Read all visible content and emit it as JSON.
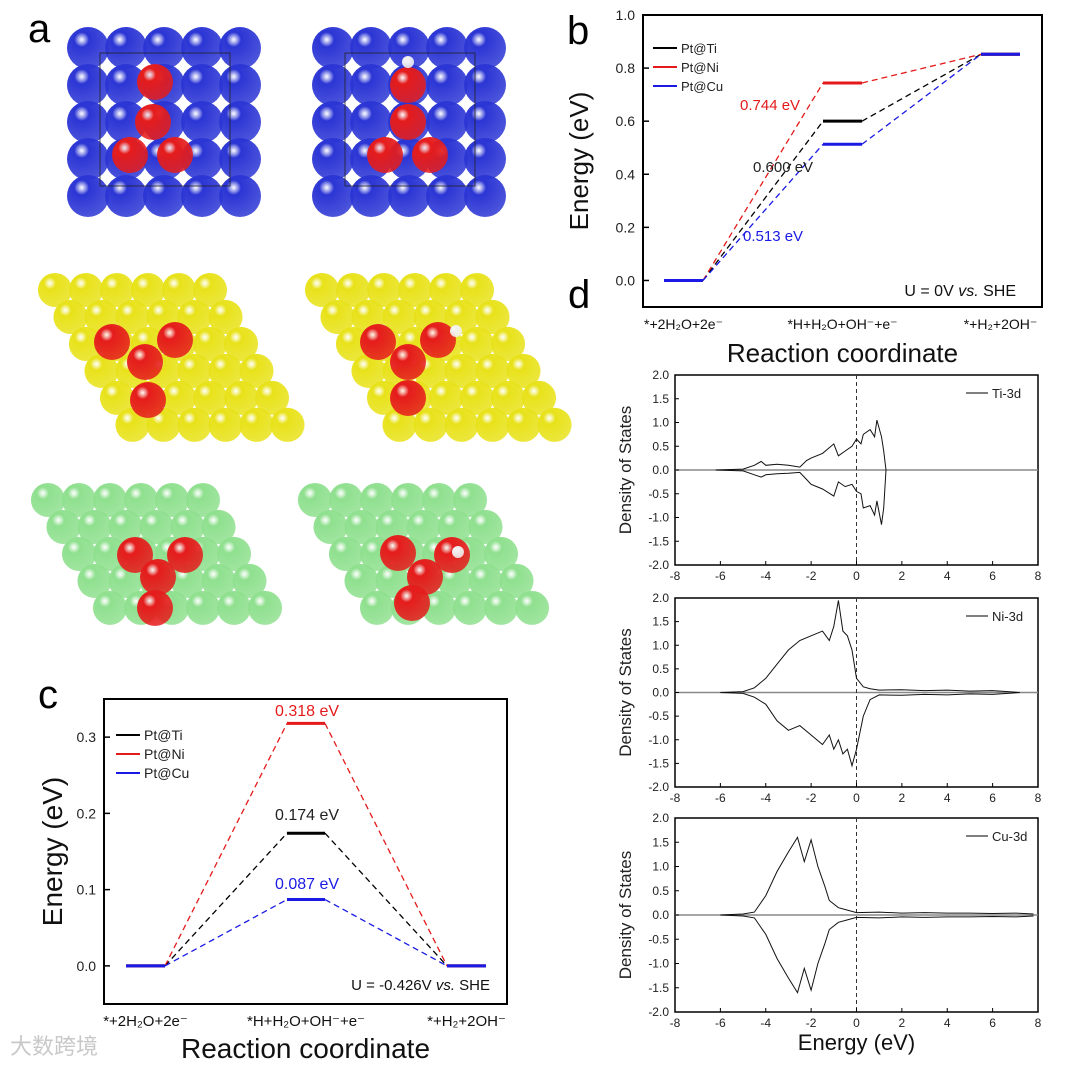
{
  "panel_letters": {
    "a": "a",
    "b": "b",
    "c": "c",
    "d": "d"
  },
  "watermark": "大数跨境",
  "structures": {
    "colors": {
      "substrate_ti": "#2b35d4",
      "substrate_ni": "#e8e21a",
      "substrate_cu": "#8fe08f",
      "pt": "#e51c1c",
      "h": "#f2f2f2"
    }
  },
  "chart_data": [
    {
      "id": "b",
      "type": "line",
      "title": "",
      "xlabel": "Reaction coordinate",
      "ylabel": "Energy (eV)",
      "ylim": [
        -0.1,
        1.0
      ],
      "yticks": [
        "0.0",
        "0.2",
        "0.4",
        "0.6",
        "0.8",
        "1.0"
      ],
      "categories": [
        "*+2H₂O+2e⁻",
        "*H+H₂O+OH⁻+e⁻",
        "*+H₂+2OH⁻"
      ],
      "series": [
        {
          "name": "Pt@Ti",
          "color": "#000000",
          "values": [
            0,
            0.6,
            0.852
          ]
        },
        {
          "name": "Pt@Ni",
          "color": "#e41a1a",
          "values": [
            0,
            0.744,
            0.852
          ]
        },
        {
          "name": "Pt@Cu",
          "color": "#1a1ae4",
          "values": [
            0,
            0.513,
            0.852
          ]
        }
      ],
      "annotations": [
        "0.744 eV",
        "0.600 eV",
        "0.513 eV"
      ],
      "condition": "U = 0V vs. SHE",
      "legend": "top-left"
    },
    {
      "id": "c",
      "type": "line",
      "title": "",
      "xlabel": "Reaction coordinate",
      "ylabel": "Energy (eV)",
      "ylim": [
        -0.05,
        0.35
      ],
      "yticks": [
        "0.0",
        "0.1",
        "0.2",
        "0.3"
      ],
      "categories": [
        "*+2H₂O+2e⁻",
        "*H+H₂O+OH⁻+e⁻",
        "*+H₂+2OH⁻"
      ],
      "series": [
        {
          "name": "Pt@Ti",
          "color": "#000000",
          "values": [
            0,
            0.174,
            0
          ]
        },
        {
          "name": "Pt@Ni",
          "color": "#e41a1a",
          "values": [
            0,
            0.318,
            0
          ]
        },
        {
          "name": "Pt@Cu",
          "color": "#1a1ae4",
          "values": [
            0,
            0.087,
            0
          ]
        }
      ],
      "annotations": [
        "0.318 eV",
        "0.174 eV",
        "0.087 eV"
      ],
      "condition": "U = -0.426V vs. SHE",
      "legend": "top-left"
    },
    {
      "id": "d",
      "type": "line",
      "xlabel": "Energy (eV)",
      "ylabel": "Density of States",
      "xlim": [
        -8,
        8
      ],
      "ylim": [
        -2.0,
        2.0
      ],
      "xticks": [
        "-8",
        "-6",
        "-4",
        "-2",
        "0",
        "2",
        "4",
        "6",
        "8"
      ],
      "yticks": [
        "-2.0",
        "-1.5",
        "-1.0",
        "-0.5",
        "0.0",
        "0.5",
        "1.0",
        "1.5",
        "2.0"
      ],
      "subplots": [
        {
          "name": "Ti-3d",
          "x_up": [
            -6.2,
            -5,
            -4.5,
            -4.2,
            -4,
            -3.5,
            -3,
            -2.5,
            -2.2,
            -2,
            -1.5,
            -1,
            -0.8,
            -0.5,
            -0.2,
            0,
            0.2,
            0.3,
            0.6,
            0.8,
            0.9,
            1.1,
            1.2,
            1.3
          ],
          "up": [
            0,
            0.02,
            0.1,
            0.18,
            0.1,
            0.12,
            0.1,
            0.06,
            0.2,
            0.25,
            0.35,
            0.55,
            0.3,
            0.4,
            0.5,
            0.65,
            0.55,
            0.75,
            0.85,
            0.7,
            1.05,
            0.7,
            0.4,
            0
          ],
          "down": [
            0,
            -0.02,
            -0.1,
            -0.15,
            -0.1,
            -0.08,
            -0.07,
            -0.05,
            -0.2,
            -0.3,
            -0.4,
            -0.55,
            -0.25,
            -0.35,
            -0.3,
            -0.45,
            -0.5,
            -0.8,
            -0.75,
            -0.95,
            -0.65,
            -1.15,
            -0.8,
            0
          ]
        },
        {
          "name": "Ni-3d",
          "x_up": [
            -6,
            -5,
            -4.5,
            -4,
            -3.5,
            -3,
            -2.5,
            -2,
            -1.5,
            -1.2,
            -1,
            -0.8,
            -0.6,
            -0.4,
            -0.2,
            0,
            0.3,
            0.6,
            1,
            2,
            3,
            4,
            5,
            6,
            7.2
          ],
          "up": [
            0,
            0.02,
            0.1,
            0.3,
            0.6,
            0.9,
            1.1,
            1.2,
            1.3,
            1.1,
            1.4,
            1.95,
            1.3,
            1.2,
            0.9,
            0.3,
            0.12,
            0.08,
            0.05,
            0.06,
            0.04,
            0.05,
            0.03,
            0.04,
            0
          ],
          "down": [
            0,
            -0.02,
            -0.1,
            -0.25,
            -0.6,
            -0.8,
            -0.7,
            -0.9,
            -1.1,
            -0.9,
            -1.2,
            -1.0,
            -1.3,
            -1.2,
            -1.55,
            -1.2,
            -0.5,
            -0.15,
            -0.05,
            -0.06,
            -0.04,
            -0.05,
            -0.03,
            -0.04,
            0
          ]
        },
        {
          "name": "Cu-3d",
          "x_up": [
            -6,
            -5,
            -4.5,
            -4,
            -3.5,
            -3,
            -2.6,
            -2.3,
            -2,
            -1.7,
            -1.4,
            -1.2,
            -0.8,
            -0.4,
            0,
            1,
            2,
            3,
            4,
            5,
            6,
            7,
            7.8
          ],
          "up": [
            0,
            0.02,
            0.06,
            0.4,
            0.9,
            1.3,
            1.6,
            1.1,
            1.55,
            1.0,
            0.6,
            0.3,
            0.15,
            0.1,
            0.05,
            0.06,
            0.04,
            0.05,
            0.04,
            0.04,
            0.03,
            0.04,
            0.02
          ],
          "down": [
            0,
            -0.02,
            -0.06,
            -0.4,
            -0.9,
            -1.3,
            -1.6,
            -1.1,
            -1.55,
            -1.0,
            -0.6,
            -0.3,
            -0.15,
            -0.1,
            -0.05,
            -0.06,
            -0.04,
            -0.05,
            -0.04,
            -0.04,
            -0.03,
            -0.04,
            -0.02
          ]
        }
      ]
    }
  ]
}
